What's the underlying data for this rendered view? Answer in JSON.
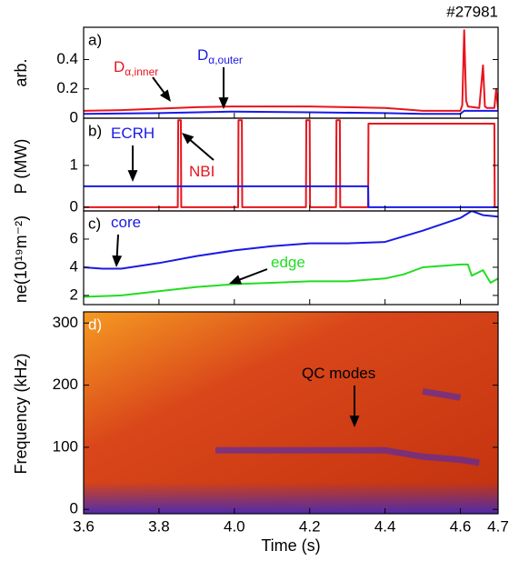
{
  "title": "#27981",
  "chart_data": [
    {
      "type": "line",
      "panel_label": "a)",
      "ylabel": "arb.",
      "ylim": [
        0,
        0.62
      ],
      "yticks": [
        0,
        0.2,
        0.4
      ],
      "series": [
        {
          "color": "#e8141c",
          "x": [
            3.6,
            3.7,
            3.8,
            3.9,
            4.0,
            4.1,
            4.2,
            4.3,
            4.4,
            4.45,
            4.5,
            4.6,
            4.605,
            4.61,
            4.615,
            4.62,
            4.65,
            4.66,
            4.665,
            4.67,
            4.69,
            4.695,
            4.7
          ],
          "values": [
            0.05,
            0.055,
            0.065,
            0.075,
            0.08,
            0.08,
            0.08,
            0.075,
            0.07,
            0.06,
            0.05,
            0.05,
            0.09,
            0.6,
            0.12,
            0.08,
            0.07,
            0.36,
            0.08,
            0.07,
            0.07,
            0.2,
            0.06
          ]
        },
        {
          "color": "#1a1ae6",
          "x": [
            3.6,
            3.8,
            4.0,
            4.2,
            4.4,
            4.5,
            4.6,
            4.61,
            4.7
          ],
          "values": [
            0.03,
            0.035,
            0.045,
            0.04,
            0.035,
            0.03,
            0.03,
            0.05,
            0.05
          ]
        }
      ],
      "annotations": [
        {
          "text": "D",
          "sub": "α,inner",
          "color": "#e8141c"
        },
        {
          "text": "D",
          "sub": "α,outer",
          "color": "#1a1ae6"
        }
      ]
    },
    {
      "type": "line",
      "panel_label": "b)",
      "ylabel": "P (MW)",
      "ylim": [
        -0.09,
        2.13
      ],
      "yticks": [
        0,
        1
      ],
      "series": [
        {
          "color": "#e8141c",
          "x": [
            3.6,
            3.85,
            3.851,
            3.858,
            3.859,
            4.01,
            4.011,
            4.02,
            4.021,
            4.19,
            4.191,
            4.2,
            4.201,
            4.27,
            4.271,
            4.28,
            4.281,
            4.355,
            4.356,
            4.69,
            4.691,
            4.7
          ],
          "values": [
            0,
            0,
            2.08,
            2.08,
            0,
            0,
            2.08,
            2.08,
            0,
            0,
            2.08,
            2.08,
            0,
            0,
            2.08,
            2.08,
            0,
            0,
            2.0,
            2.0,
            0,
            0
          ]
        },
        {
          "color": "#1a1ae6",
          "x": [
            3.6,
            4.355,
            4.356,
            4.7
          ],
          "values": [
            0.5,
            0.5,
            0,
            0
          ]
        }
      ],
      "annotations": [
        {
          "text": "ECRH",
          "color": "#1a1ae6"
        },
        {
          "text": "NBI",
          "color": "#e8141c"
        }
      ]
    },
    {
      "type": "line",
      "panel_label": "c)",
      "ylabel": "ne(10¹⁹m⁻²)",
      "ylim": [
        1.35,
        8.0
      ],
      "yticks": [
        2,
        4,
        6
      ],
      "series": [
        {
          "color": "#1a1ae6",
          "x": [
            3.6,
            3.65,
            3.7,
            3.8,
            3.9,
            4.0,
            4.1,
            4.2,
            4.3,
            4.4,
            4.5,
            4.6,
            4.63,
            4.66,
            4.7
          ],
          "values": [
            4.0,
            3.9,
            3.9,
            4.3,
            4.8,
            5.2,
            5.5,
            5.7,
            5.7,
            5.8,
            6.6,
            7.5,
            8.0,
            7.7,
            7.6
          ]
        },
        {
          "color": "#22dd22",
          "x": [
            3.6,
            3.7,
            3.8,
            3.9,
            4.0,
            4.1,
            4.2,
            4.3,
            4.4,
            4.45,
            4.5,
            4.6,
            4.62,
            4.63,
            4.66,
            4.68,
            4.7
          ],
          "values": [
            1.9,
            2.0,
            2.3,
            2.6,
            2.8,
            2.9,
            3.0,
            3.0,
            3.2,
            3.5,
            4.0,
            4.2,
            4.2,
            3.4,
            3.8,
            2.9,
            3.2
          ]
        }
      ],
      "annotations": [
        {
          "text": "core",
          "color": "#1a1ae6"
        },
        {
          "text": "edge",
          "color": "#22dd22"
        }
      ]
    },
    {
      "type": "spectrogram",
      "panel_label": "d)",
      "ylabel": "Frequency (kHz)",
      "xlabel": "Time (s)",
      "xlim": [
        3.6,
        4.7
      ],
      "xticks": [
        3.6,
        3.8,
        {
          "value": 4,
          "label": "4.0"
        },
        4.2,
        4.4,
        4.6,
        4.7
      ],
      "ylim": [
        -7,
        318
      ],
      "yticks": [
        0,
        100,
        200,
        300
      ],
      "series": [
        {
          "color": "#3c28c8",
          "x": [
            3.95,
            4.0,
            4.1,
            4.2,
            4.3,
            4.4,
            4.5,
            4.6,
            4.65
          ],
          "values": [
            95,
            95,
            95,
            95,
            95,
            95,
            85,
            80,
            75
          ]
        },
        {
          "color": "#3c28c8",
          "x": [
            4.5,
            4.55,
            4.6
          ],
          "values": [
            190,
            185,
            180
          ]
        }
      ],
      "annotations": [
        {
          "text": "QC modes",
          "color": "#000000"
        }
      ]
    }
  ]
}
